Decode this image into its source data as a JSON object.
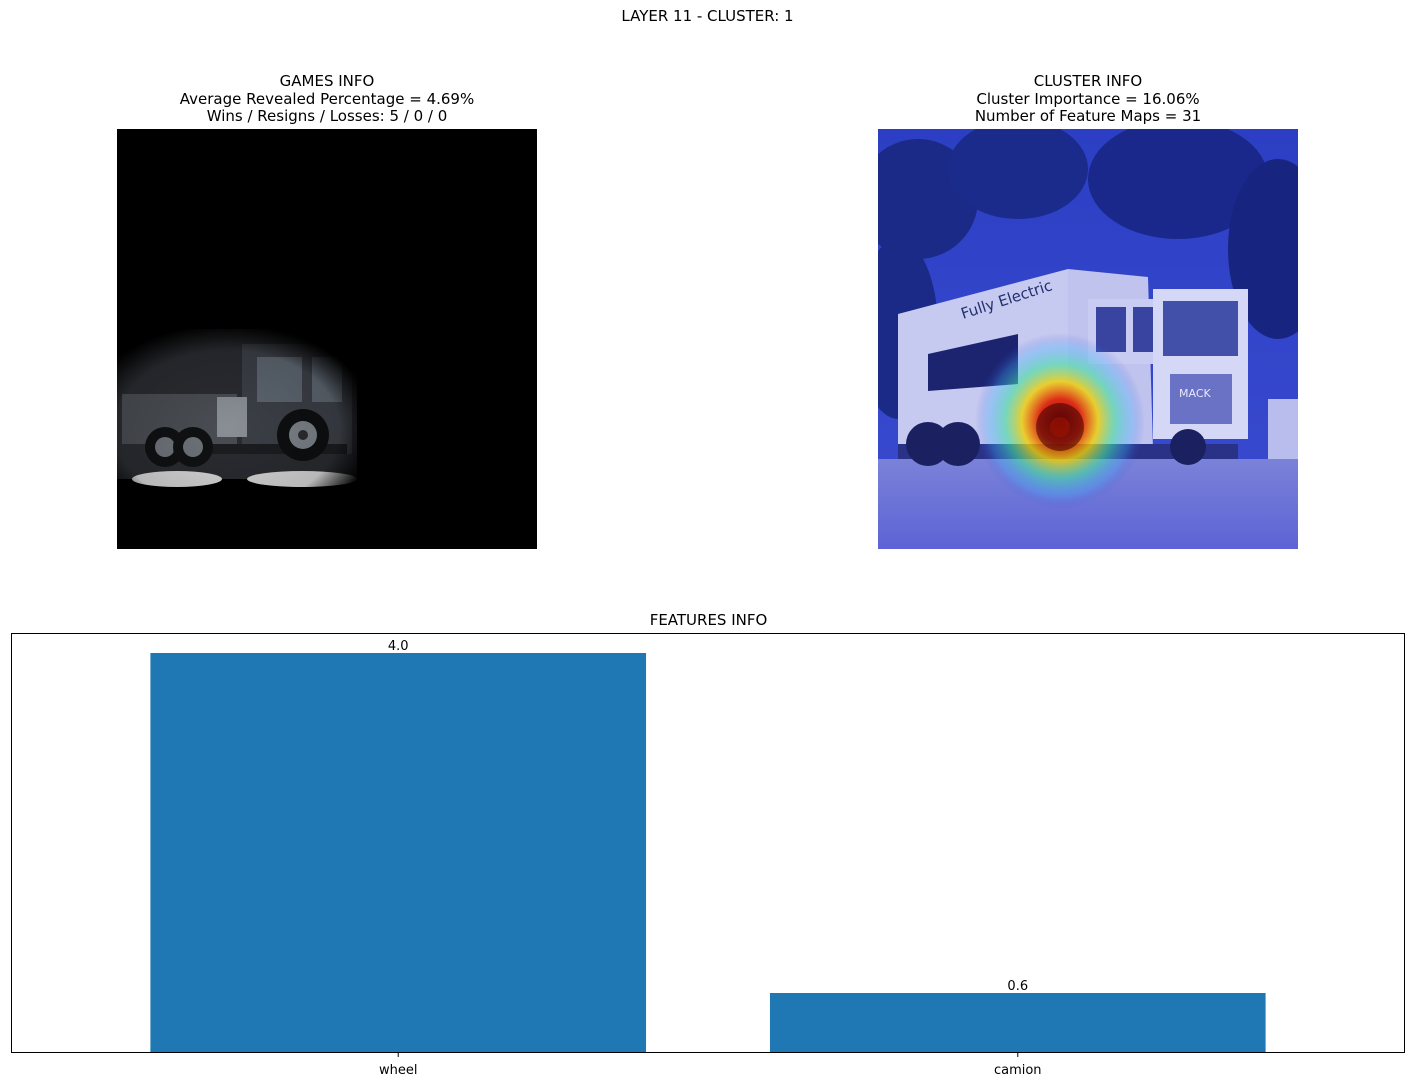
{
  "figure": {
    "suptitle": "LAYER 11 - CLUSTER: 1"
  },
  "games_panel": {
    "title": "GAMES INFO",
    "line1": "Average Revealed Percentage = 4.69%",
    "line2": "Wins / Resigns / Losses: 5 / 0 / 0"
  },
  "cluster_panel": {
    "title": "CLUSTER INFO",
    "line1": "Cluster Importance = 16.06%",
    "line2": "Number of Feature Maps = 31",
    "truck_text": "Fully Electric",
    "grille_text": "MACK"
  },
  "features_panel": {
    "title": "FEATURES INFO"
  },
  "chart_data": {
    "type": "bar",
    "categories": [
      "wheel",
      "camion"
    ],
    "values": [
      4.0,
      0.6
    ],
    "value_labels": [
      "4.0",
      "0.6"
    ],
    "title": "FEATURES INFO",
    "xlabel": "",
    "ylabel": "",
    "ylim": [
      0,
      4.2
    ],
    "bar_color": "#1f77b4",
    "grid": false,
    "y_ticks_visible": false
  }
}
